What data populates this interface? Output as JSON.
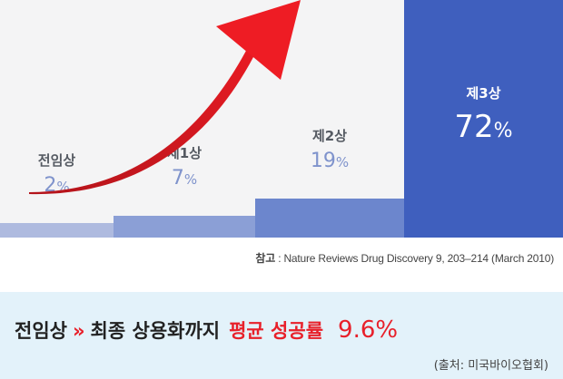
{
  "chart_data": {
    "type": "bar",
    "categories": [
      "전임상",
      "제1상",
      "제2상",
      "제3상"
    ],
    "values": [
      2,
      7,
      19,
      72
    ],
    "unit": "%",
    "colors": [
      "#aebadf",
      "#8b9fd6",
      "#6c86cd",
      "#3f5fbe"
    ]
  },
  "reference": {
    "label": "참고",
    "text": ": Nature Reviews Drug Discovery 9, 203–214 (March 2010)"
  },
  "banner": {
    "from": "전임상",
    "separator": "»",
    "middle": "최종 상용화까지",
    "highlight": "평균 성공률",
    "rate": "9.6%",
    "source": "(출처: 미국바이오협회)"
  },
  "colors": {
    "arrow": "#e8202a",
    "accent_red": "#e8202a",
    "banner_bg": "#e3f2fa"
  }
}
